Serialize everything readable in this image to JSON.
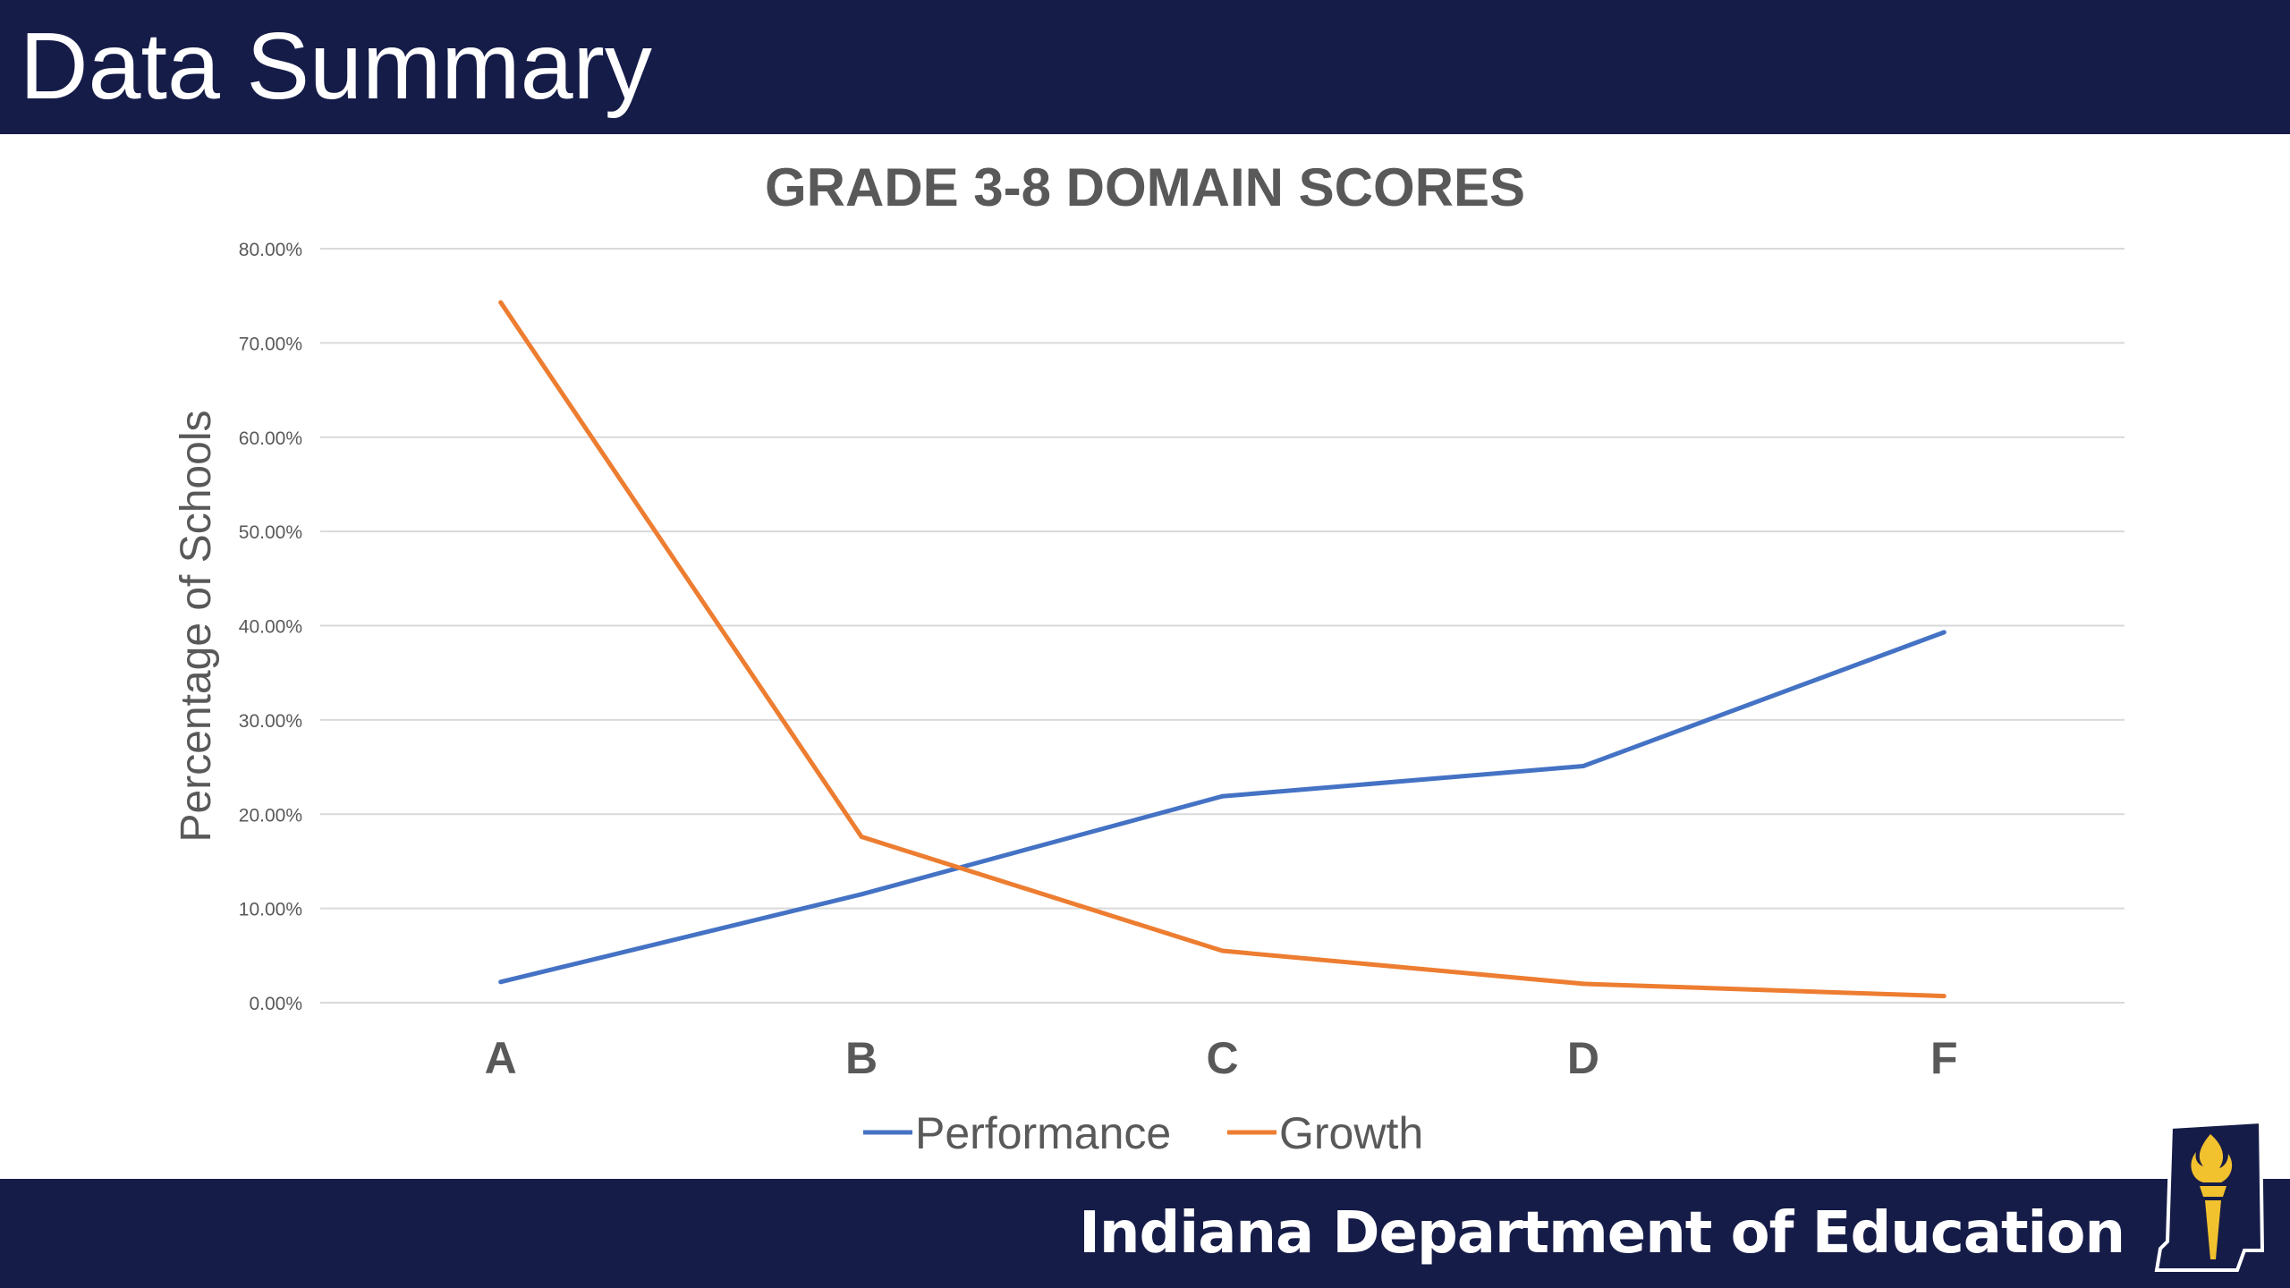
{
  "slide": {
    "title": "Data Summary",
    "footer_org": "Indiana Department of Education",
    "logo_icon": "indiana-torch-logo-icon"
  },
  "colors": {
    "banner": "#161c48",
    "performance": "#4472c4",
    "growth": "#ed7d31",
    "text": "#595959",
    "grid": "#d9d9d9"
  },
  "chart_data": {
    "type": "line",
    "title": "GRADE 3-8 DOMAIN SCORES",
    "ylabel": "Percentage of Schools",
    "xlabel": "",
    "categories": [
      "A",
      "B",
      "C",
      "D",
      "F"
    ],
    "ylim": [
      0,
      80
    ],
    "yticks": [
      0,
      10,
      20,
      30,
      40,
      50,
      60,
      70,
      80
    ],
    "ytick_labels": [
      "0.00%",
      "10.00%",
      "20.00%",
      "30.00%",
      "40.00%",
      "50.00%",
      "60.00%",
      "70.00%",
      "80.00%"
    ],
    "grid": true,
    "legend_position": "bottom",
    "series": [
      {
        "name": "Performance",
        "color": "#4472c4",
        "values": [
          2.2,
          11.5,
          21.9,
          25.1,
          39.3
        ]
      },
      {
        "name": "Growth",
        "color": "#ed7d31",
        "values": [
          74.3,
          17.6,
          5.5,
          2.0,
          0.7
        ]
      }
    ]
  }
}
